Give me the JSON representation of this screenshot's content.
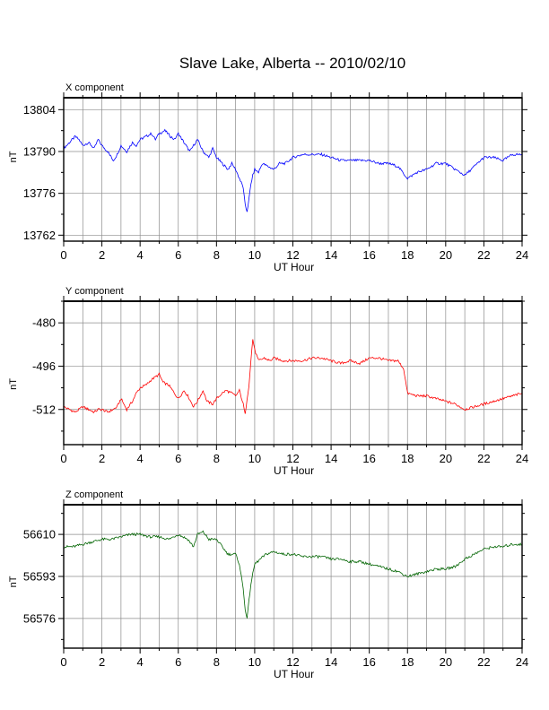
{
  "figure": {
    "title": "Slave Lake, Alberta -- 2010/02/10"
  },
  "chart_data": [
    {
      "type": "line",
      "panel_title": "X component",
      "xlabel": "UT Hour",
      "ylabel": "nT",
      "xlim": [
        0,
        24
      ],
      "ylim": [
        13760,
        13808
      ],
      "xticks": [
        0,
        2,
        4,
        6,
        8,
        10,
        12,
        14,
        16,
        18,
        20,
        22,
        24
      ],
      "yticks": [
        13762,
        13776,
        13790,
        13804
      ],
      "grid": true,
      "color": "#0000ff",
      "series": [
        {
          "x": [
            0,
            0.3,
            0.6,
            0.8,
            1.0,
            1.3,
            1.6,
            1.8,
            2.0,
            2.3,
            2.6,
            2.8,
            3.0,
            3.3,
            3.6,
            3.8,
            4.0,
            4.3,
            4.6,
            4.8,
            5.0,
            5.3,
            5.6,
            5.8,
            6.0,
            6.3,
            6.6,
            6.8,
            7.0,
            7.3,
            7.6,
            7.8,
            8.0,
            8.3,
            8.6,
            8.8,
            9.0,
            9.2,
            9.4,
            9.5,
            9.6,
            9.7,
            9.8,
            9.9,
            10.0,
            10.2,
            10.4,
            10.7,
            11.0,
            11.3,
            11.6,
            12.0,
            12.5,
            13.0,
            13.5,
            14.0,
            14.5,
            15.0,
            15.5,
            16.0,
            16.5,
            17.0,
            17.5,
            18.0,
            18.5,
            19.0,
            19.5,
            20.0,
            20.5,
            21.0,
            21.5,
            22.0,
            22.5,
            23.0,
            23.5,
            24.0
          ],
          "y": [
            13791,
            13793,
            13795,
            13794,
            13792,
            13793,
            13791,
            13794,
            13792,
            13790,
            13787,
            13789,
            13792,
            13790,
            13793,
            13792,
            13794,
            13795,
            13796,
            13794,
            13796,
            13797,
            13795,
            13794,
            13796,
            13793,
            13790,
            13792,
            13794,
            13790,
            13788,
            13791,
            13788,
            13786,
            13784,
            13786,
            13784,
            13781,
            13778,
            13772,
            13770,
            13774,
            13779,
            13782,
            13784,
            13783,
            13786,
            13785,
            13784,
            13786,
            13786,
            13788,
            13789,
            13789,
            13789,
            13788,
            13787,
            13787,
            13787,
            13787,
            13786,
            13786,
            13785,
            13781,
            13783,
            13784,
            13786,
            13786,
            13784,
            13782,
            13785,
            13788,
            13788,
            13787,
            13789,
            13789
          ]
        }
      ]
    },
    {
      "type": "line",
      "panel_title": "Y component",
      "xlabel": "UT Hour",
      "ylabel": "nT",
      "xlim": [
        0,
        24
      ],
      "ylim": [
        -525,
        -472
      ],
      "xticks": [
        0,
        2,
        4,
        6,
        8,
        10,
        12,
        14,
        16,
        18,
        20,
        22,
        24
      ],
      "yticks": [
        -512,
        -496,
        -480
      ],
      "grid": true,
      "color": "#ff0000",
      "series": [
        {
          "x": [
            0,
            0.3,
            0.6,
            0.8,
            1.0,
            1.3,
            1.6,
            1.8,
            2.0,
            2.3,
            2.6,
            2.8,
            3.0,
            3.3,
            3.6,
            3.8,
            4.0,
            4.3,
            4.6,
            4.8,
            5.0,
            5.2,
            5.5,
            5.8,
            6.0,
            6.3,
            6.5,
            6.8,
            7.0,
            7.3,
            7.5,
            7.8,
            8.0,
            8.3,
            8.5,
            8.8,
            9.0,
            9.2,
            9.4,
            9.5,
            9.6,
            9.7,
            9.8,
            9.9,
            10.0,
            10.2,
            10.5,
            10.8,
            11.0,
            11.5,
            12.0,
            12.5,
            13.0,
            13.5,
            14.0,
            14.5,
            15.0,
            15.5,
            16.0,
            16.5,
            17.0,
            17.5,
            17.8,
            18.0,
            18.5,
            19.0,
            19.5,
            20.0,
            20.5,
            21.0,
            21.5,
            22.0,
            22.5,
            23.0,
            23.5,
            24.0
          ],
          "y": [
            -511,
            -512,
            -513,
            -512,
            -511,
            -512,
            -513,
            -512,
            -512,
            -513,
            -512,
            -511,
            -508,
            -512,
            -509,
            -506,
            -504,
            -503,
            -501,
            -500,
            -499,
            -502,
            -503,
            -506,
            -508,
            -505,
            -507,
            -511,
            -509,
            -505,
            -509,
            -510,
            -508,
            -506,
            -505,
            -506,
            -507,
            -505,
            -510,
            -514,
            -508,
            -503,
            -494,
            -486,
            -490,
            -494,
            -493,
            -494,
            -493,
            -494,
            -494,
            -494,
            -493,
            -493,
            -494,
            -495,
            -494,
            -495,
            -493,
            -493,
            -494,
            -494,
            -497,
            -506,
            -507,
            -507,
            -508,
            -509,
            -510,
            -512,
            -511,
            -510,
            -509,
            -508,
            -507,
            -506
          ]
        }
      ]
    },
    {
      "type": "line",
      "panel_title": "Z component",
      "xlabel": "UT Hour",
      "ylabel": "nT",
      "xlim": [
        0,
        24
      ],
      "ylim": [
        56564,
        56622
      ],
      "xticks": [
        0,
        2,
        4,
        6,
        8,
        10,
        12,
        14,
        16,
        18,
        20,
        22,
        24
      ],
      "yticks": [
        56576,
        56593,
        56610
      ],
      "grid": true,
      "color": "#006400",
      "series": [
        {
          "x": [
            0,
            0.5,
            1.0,
            1.5,
            2.0,
            2.5,
            3.0,
            3.5,
            4.0,
            4.5,
            5.0,
            5.5,
            6.0,
            6.5,
            6.8,
            7.0,
            7.3,
            7.6,
            8.0,
            8.3,
            8.6,
            9.0,
            9.2,
            9.4,
            9.5,
            9.6,
            9.7,
            9.8,
            10.0,
            10.3,
            10.6,
            11.0,
            11.5,
            12.0,
            12.5,
            13.0,
            13.5,
            14.0,
            14.5,
            15.0,
            15.5,
            16.0,
            16.5,
            17.0,
            17.5,
            18.0,
            18.5,
            19.0,
            19.5,
            20.0,
            20.5,
            21.0,
            21.5,
            22.0,
            22.5,
            23.0,
            23.5,
            24.0
          ],
          "y": [
            56605,
            56605,
            56606,
            56607,
            56608,
            56608,
            56609,
            56610,
            56610,
            56609,
            56609,
            56608,
            56610,
            56608,
            56605,
            56610,
            56611,
            56608,
            56608,
            56605,
            56602,
            56602,
            56598,
            56588,
            56580,
            56576,
            56583,
            56590,
            56598,
            56600,
            56602,
            56603,
            56602,
            56602,
            56601,
            56601,
            56601,
            56600,
            56600,
            56599,
            56599,
            56598,
            56597,
            56596,
            56595,
            56593,
            56594,
            56595,
            56596,
            56596,
            56597,
            56600,
            56602,
            56604,
            56605,
            56605,
            56606,
            56606
          ]
        }
      ]
    }
  ]
}
